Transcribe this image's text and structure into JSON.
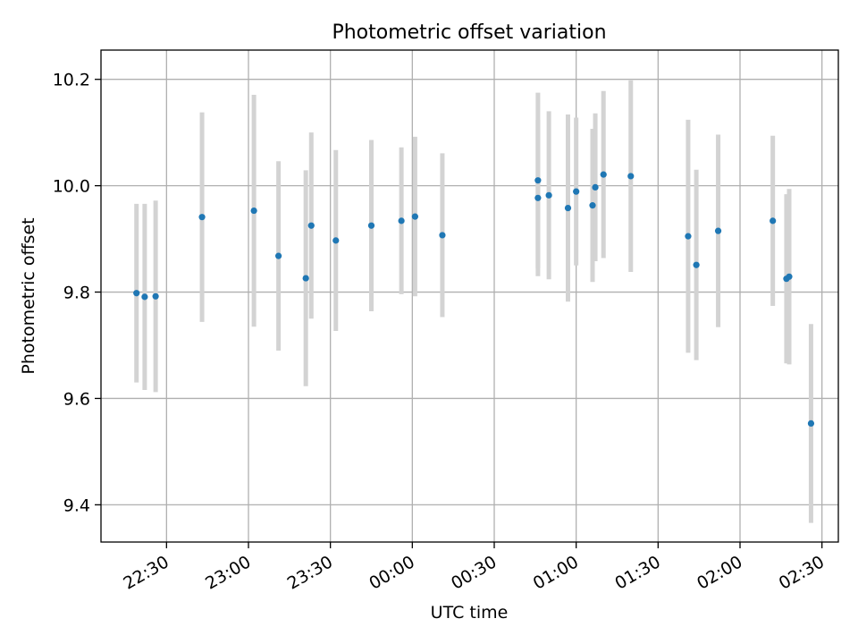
{
  "chart_data": {
    "type": "scatter",
    "title": "Photometric offset variation",
    "xlabel": "UTC time",
    "ylabel": "Photometric offset",
    "x_tick_labels": [
      "22:30",
      "23:00",
      "23:30",
      "00:00",
      "00:30",
      "01:00",
      "01:30",
      "02:00",
      "02:30"
    ],
    "y_tick_labels": [
      "9.4",
      "9.6",
      "9.8",
      "10.0",
      "10.2"
    ],
    "y_ticks": [
      9.4,
      9.6,
      9.8,
      10.0,
      10.2
    ],
    "ylim": [
      9.33,
      10.255
    ],
    "xlim": [
      "22:06",
      "02:36"
    ],
    "grid": true,
    "marker_color": "#1f77b4",
    "errorbar_color": "#d3d3d3",
    "points": [
      {
        "x": "22:19",
        "y": 9.798,
        "err": 0.168
      },
      {
        "x": "22:22",
        "y": 9.791,
        "err": 0.175
      },
      {
        "x": "22:26",
        "y": 9.792,
        "err": 0.18
      },
      {
        "x": "22:43",
        "y": 9.941,
        "err": 0.197
      },
      {
        "x": "23:02",
        "y": 9.953,
        "err": 0.218
      },
      {
        "x": "23:11",
        "y": 9.868,
        "err": 0.178
      },
      {
        "x": "23:21",
        "y": 9.826,
        "err": 0.203
      },
      {
        "x": "23:23",
        "y": 9.925,
        "err": 0.175
      },
      {
        "x": "23:32",
        "y": 9.897,
        "err": 0.17
      },
      {
        "x": "23:45",
        "y": 9.925,
        "err": 0.161
      },
      {
        "x": "23:56",
        "y": 9.934,
        "err": 0.138
      },
      {
        "x": "00:01",
        "y": 9.942,
        "err": 0.15
      },
      {
        "x": "00:11",
        "y": 9.907,
        "err": 0.154
      },
      {
        "x": "00:46",
        "y": 9.977,
        "err": 0.147
      },
      {
        "x": "00:46",
        "y": 10.01,
        "err": 0.165
      },
      {
        "x": "00:50",
        "y": 9.982,
        "err": 0.158
      },
      {
        "x": "00:57",
        "y": 9.958,
        "err": 0.176
      },
      {
        "x": "01:06",
        "y": 9.963,
        "err": 0.144
      },
      {
        "x": "01:00",
        "y": 9.989,
        "err": 0.139
      },
      {
        "x": "01:07",
        "y": 9.997,
        "err": 0.139
      },
      {
        "x": "01:10",
        "y": 10.021,
        "err": 0.157
      },
      {
        "x": "01:20",
        "y": 10.018,
        "err": 0.18
      },
      {
        "x": "01:41",
        "y": 9.905,
        "err": 0.219
      },
      {
        "x": "01:44",
        "y": 9.851,
        "err": 0.179
      },
      {
        "x": "01:52",
        "y": 9.915,
        "err": 0.181
      },
      {
        "x": "02:12",
        "y": 9.934,
        "err": 0.16
      },
      {
        "x": "02:17",
        "y": 9.825,
        "err": 0.159
      },
      {
        "x": "02:18",
        "y": 9.829,
        "err": 0.165
      },
      {
        "x": "02:26",
        "y": 9.553,
        "err": 0.187
      }
    ]
  }
}
